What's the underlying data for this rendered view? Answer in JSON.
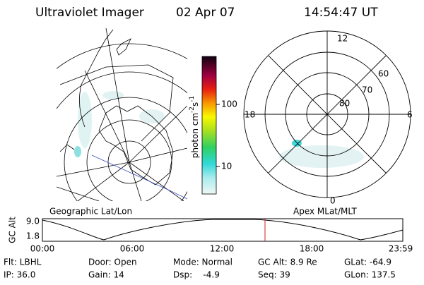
{
  "header": {
    "title": "Ultraviolet Imager",
    "date": "02 Apr 07",
    "time": "14:54:47 UT"
  },
  "colorbar": {
    "label": [
      "photon cm",
      "-2",
      "s",
      "-1"
    ],
    "ticks": [
      "100",
      "10"
    ]
  },
  "polar": {
    "hours": [
      "12",
      "18",
      "6",
      "0"
    ],
    "latitudes": [
      "60",
      "70",
      "80"
    ]
  },
  "timeline": {
    "left_label": "Geographic Lat/Lon",
    "right_label": "Apex MLat/MLT",
    "axis_label": "GC Alt",
    "yticks": [
      "9.0",
      "1.8"
    ],
    "xticks": [
      "00:00",
      "06:00",
      "12:00",
      "18:00",
      "23:59"
    ]
  },
  "status": [
    [
      "Flt: LBHL",
      "Door: Open",
      "Mode: Normal",
      "GC Alt: 8.9 Re",
      "GLat: -64.9"
    ],
    [
      "IP: 36.0",
      "Gain: 14",
      "Dsp:    -4.9",
      "Seq: 39",
      "GLon: 137.5"
    ]
  ]
}
